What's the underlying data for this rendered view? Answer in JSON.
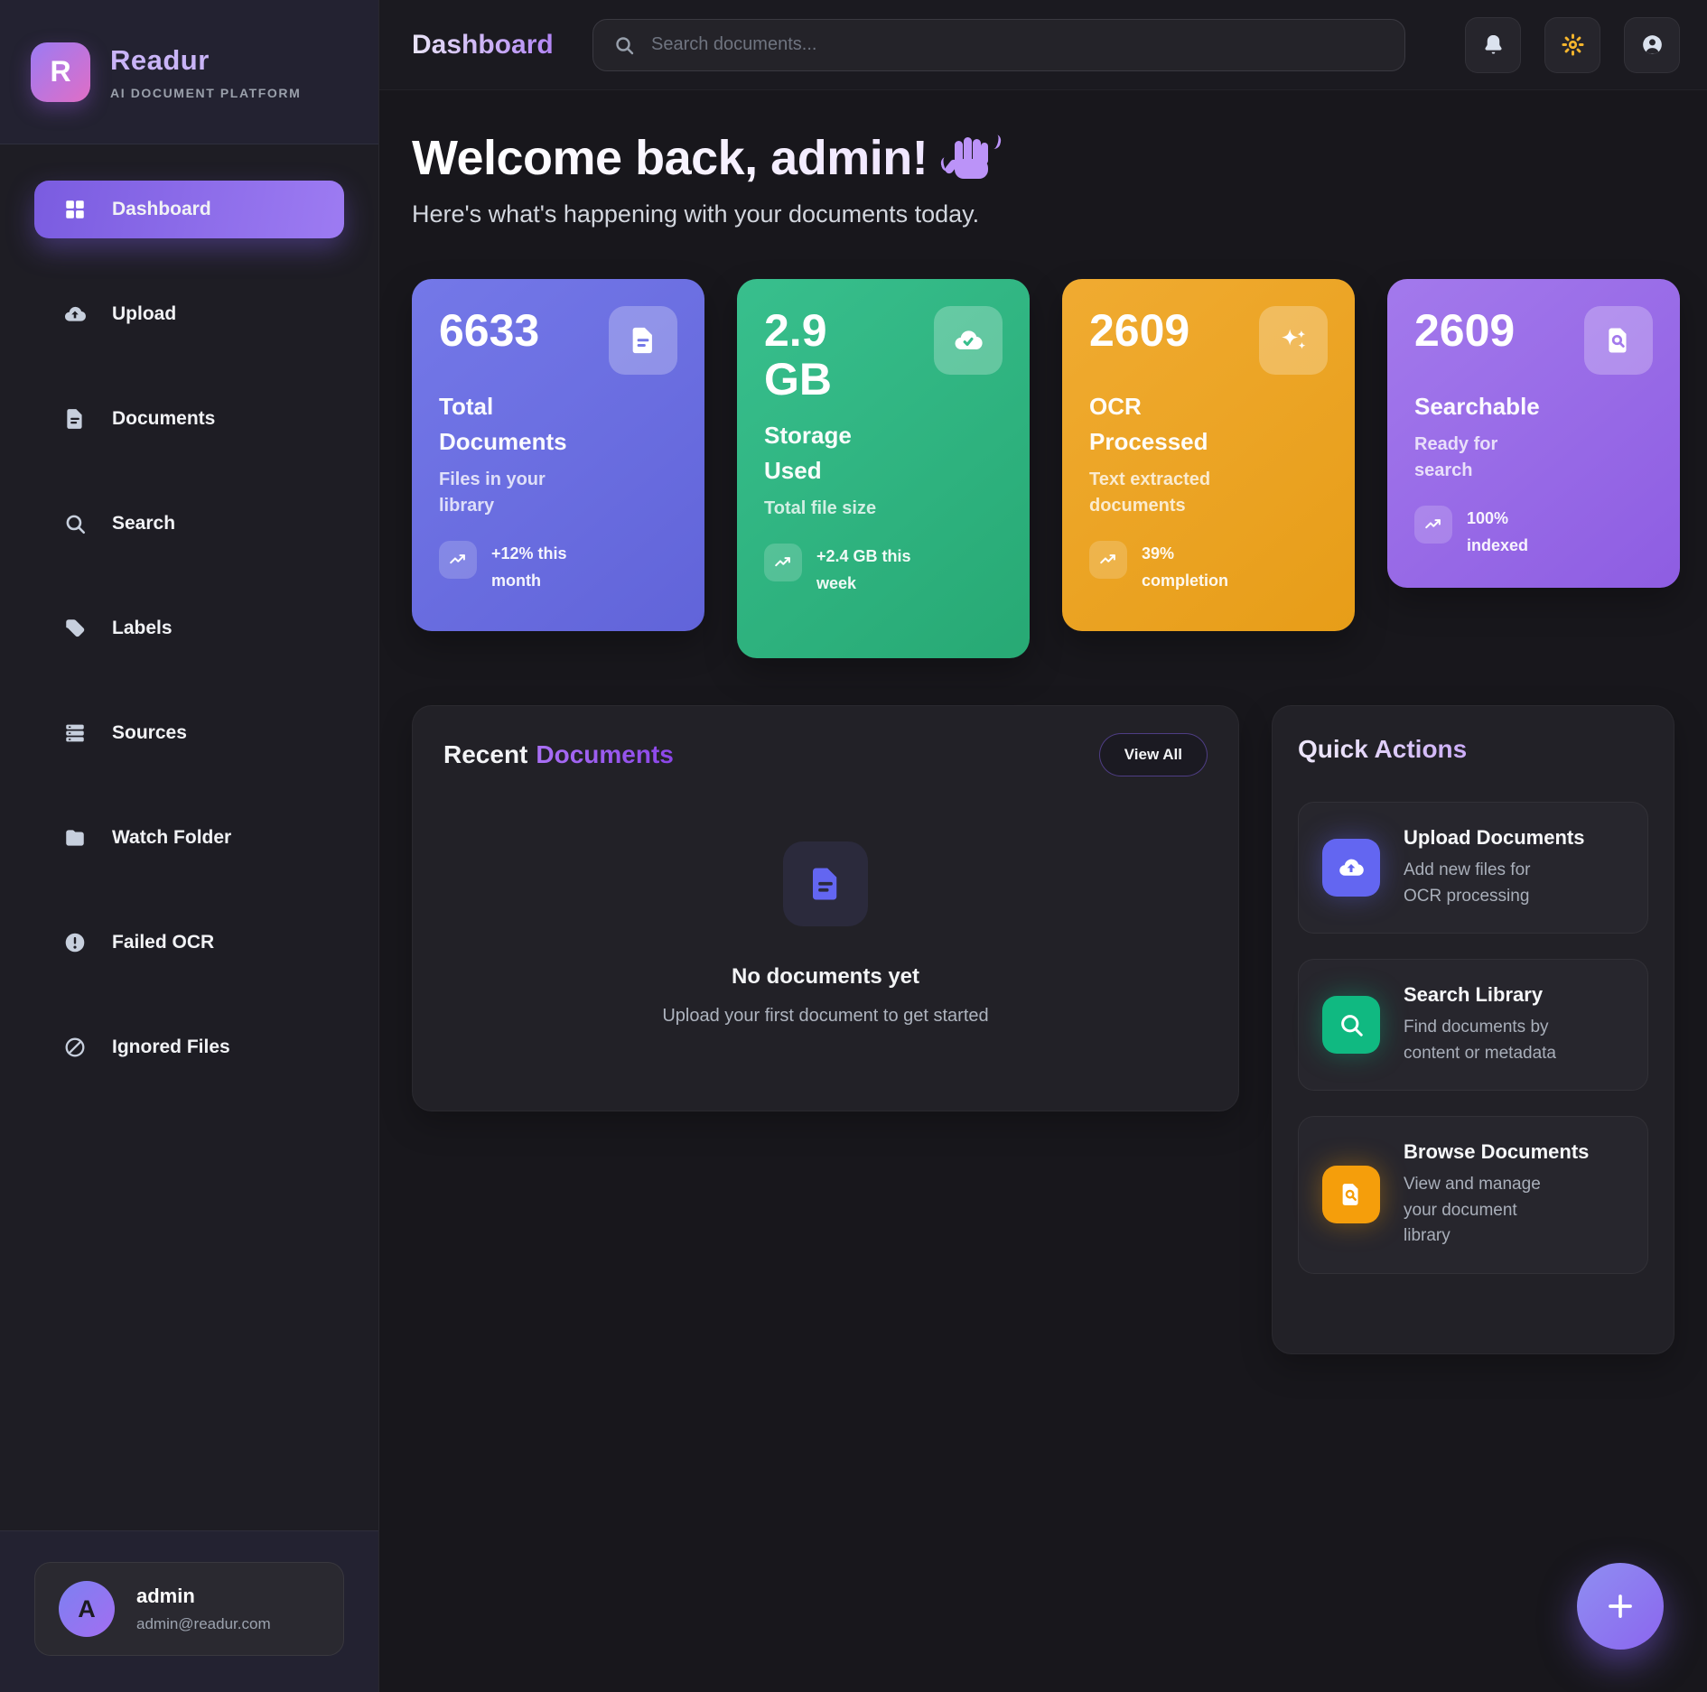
{
  "brand": {
    "logo_letter": "R",
    "name": "Readur",
    "tagline": "AI DOCUMENT PLATFORM"
  },
  "sidebar": {
    "items": [
      {
        "label": "Dashboard",
        "icon": "grid-icon",
        "active": true
      },
      {
        "label": "Upload",
        "icon": "cloud-upload-icon",
        "active": false
      },
      {
        "label": "Documents",
        "icon": "file-icon",
        "active": false
      },
      {
        "label": "Search",
        "icon": "search-icon",
        "active": false
      },
      {
        "label": "Labels",
        "icon": "tag-icon",
        "active": false
      },
      {
        "label": "Sources",
        "icon": "list-icon",
        "active": false
      },
      {
        "label": "Watch Folder",
        "icon": "folder-icon",
        "active": false
      },
      {
        "label": "Failed OCR",
        "icon": "alert-circle-icon",
        "active": false
      },
      {
        "label": "Ignored Files",
        "icon": "ban-icon",
        "active": false
      }
    ]
  },
  "user": {
    "initial": "A",
    "name": "admin",
    "email": "admin@readur.com"
  },
  "topbar": {
    "title": "Dashboard",
    "search_placeholder": "Search documents...",
    "search_icon": "search-icon",
    "buttons": [
      {
        "name": "notifications-button",
        "icon": "bell-icon"
      },
      {
        "name": "theme-toggle-button",
        "icon": "sun-icon"
      },
      {
        "name": "profile-button",
        "icon": "user-icon"
      }
    ]
  },
  "welcome": {
    "title": "Welcome back, admin!",
    "hand_icon": "waving-hand-icon",
    "subtitle": "Here's what's happening with your documents today."
  },
  "stats": [
    {
      "value": "6633",
      "label": "Total\nDocuments",
      "sub": "Files in your\nlibrary",
      "trend": "+12% this\nmonth",
      "icon": "file-icon",
      "trend_icon": "trending-up-icon",
      "gradient": [
        "#7478e8",
        "#6164d9"
      ]
    },
    {
      "value": "2.9\nGB",
      "label": "Storage\nUsed",
      "sub": "Total file size",
      "trend": "+2.4 GB this\nweek",
      "icon": "cloud-check-icon",
      "trend_icon": "trending-up-icon",
      "gradient": [
        "#38bf8d",
        "#27a974"
      ]
    },
    {
      "value": "2609",
      "label": "OCR\nProcessed",
      "sub": "Text extracted\ndocuments",
      "trend": "39%\ncompletion",
      "icon": "sparkles-icon",
      "trend_icon": "trending-up-icon",
      "gradient": [
        "#f0ab31",
        "#e79d18"
      ]
    },
    {
      "value": "2609",
      "label": "Searchable",
      "sub": "Ready for\nsearch",
      "trend": "100%\nindexed",
      "icon": "doc-search-icon",
      "trend_icon": "trending-up-icon",
      "gradient": [
        "#a379ec",
        "#8e5de2"
      ]
    }
  ],
  "recent": {
    "title_prefix": "Recent",
    "title_accent": "Documents",
    "view_all_label": "View All",
    "empty_icon": "file-icon",
    "empty_title": "No documents yet",
    "empty_subtitle": "Upload your first document to get started"
  },
  "quick_actions": {
    "title": "Quick Actions",
    "items": [
      {
        "title": "Upload Documents",
        "desc": "Add new files for\nOCR processing",
        "icon": "cloud-upload-icon",
        "color": "#6366f1"
      },
      {
        "title": "Search Library",
        "desc": "Find documents by\ncontent or metadata",
        "icon": "search-icon",
        "color": "#10b981"
      },
      {
        "title": "Browse Documents",
        "desc": "View and manage\nyour document\nlibrary",
        "icon": "doc-search-icon",
        "color": "#f59e0b"
      }
    ]
  },
  "fab": {
    "icon": "plus-icon"
  },
  "colors": {
    "accent": "#8b5cf6",
    "sun": "#f6b62d"
  }
}
